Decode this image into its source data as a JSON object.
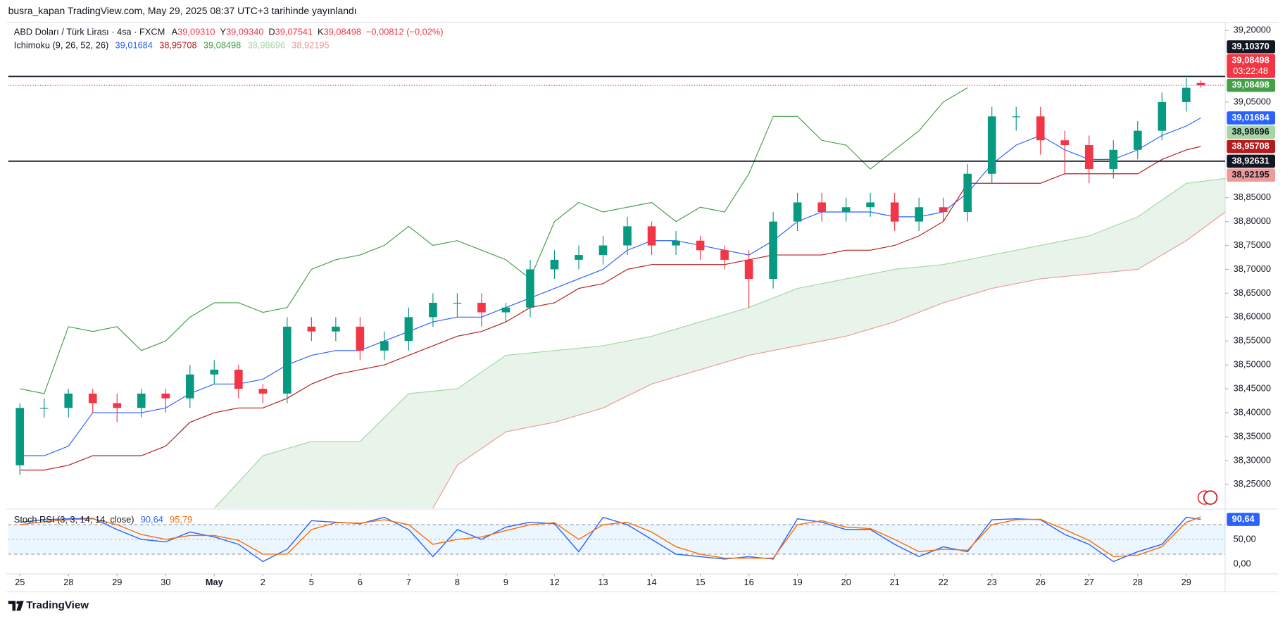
{
  "header": "busra_kapan TradingView.com, May 29, 2025 08:37 UTC+3 tarihinde yayınlandı",
  "footer": "TradingView",
  "chart_data": [
    {
      "type": "candlestick",
      "title": "ABD Doları / Türk Lirası · 4sa · FXCM",
      "ohlc_legend": [
        {
          "key": "A",
          "value": "39,09310"
        },
        {
          "key": "Y",
          "value": "39,09340"
        },
        {
          "key": "D",
          "value": "39,07541"
        },
        {
          "key": "K",
          "value": "39,08498"
        }
      ],
      "change": "−0,00812 (−0,02%)",
      "up_color": "#089981",
      "down_color": "#f23645",
      "x": [
        0,
        0.5,
        1,
        1.5,
        2,
        2.5,
        3,
        3.5,
        4,
        4.5,
        5,
        5.5,
        6,
        6.5,
        7,
        7.5,
        8,
        8.5,
        9,
        9.5,
        10,
        10.5,
        11,
        11.5,
        12,
        12.5,
        13,
        13.5,
        14,
        14.5,
        15,
        15.5,
        16,
        16.5,
        17,
        17.5,
        18,
        18.5,
        19,
        19.5,
        20,
        20.5,
        21,
        21.5,
        22,
        22.5,
        23,
        23.5,
        24,
        24.3
      ],
      "open": [
        38.29,
        38.41,
        38.41,
        38.44,
        38.42,
        38.41,
        38.44,
        38.43,
        38.48,
        38.49,
        38.45,
        38.44,
        38.58,
        38.57,
        38.58,
        38.53,
        38.55,
        38.6,
        38.63,
        38.63,
        38.61,
        38.62,
        38.7,
        38.72,
        38.73,
        38.75,
        38.79,
        38.75,
        38.76,
        38.74,
        38.72,
        38.68,
        38.8,
        38.84,
        38.82,
        38.83,
        38.84,
        38.8,
        38.83,
        38.82,
        38.9,
        39.02,
        39.02,
        38.97,
        38.96,
        38.91,
        38.95,
        38.99,
        39.05,
        39.09
      ],
      "high": [
        38.42,
        38.43,
        38.45,
        38.45,
        38.44,
        38.45,
        38.45,
        38.5,
        38.51,
        38.5,
        38.46,
        38.6,
        38.6,
        38.6,
        38.6,
        38.57,
        38.62,
        38.65,
        38.65,
        38.65,
        38.63,
        38.72,
        38.74,
        38.75,
        38.77,
        38.81,
        38.8,
        38.78,
        38.77,
        38.75,
        38.74,
        38.82,
        38.86,
        38.86,
        38.85,
        38.86,
        38.86,
        38.85,
        38.85,
        38.92,
        39.04,
        39.04,
        39.04,
        38.99,
        38.98,
        38.97,
        39.01,
        39.07,
        39.1,
        39.095
      ],
      "low": [
        38.27,
        38.39,
        38.39,
        38.4,
        38.38,
        38.39,
        38.4,
        38.41,
        38.46,
        38.43,
        38.42,
        38.42,
        38.55,
        38.55,
        38.51,
        38.51,
        38.53,
        38.58,
        38.6,
        38.58,
        38.59,
        38.6,
        38.68,
        38.7,
        38.71,
        38.73,
        38.73,
        38.73,
        38.72,
        38.7,
        38.62,
        38.66,
        38.78,
        38.8,
        38.8,
        38.81,
        38.78,
        38.78,
        38.8,
        38.8,
        38.88,
        38.99,
        38.94,
        38.9,
        38.88,
        38.89,
        38.93,
        38.97,
        39.03,
        39.08
      ],
      "close": [
        38.41,
        38.41,
        38.44,
        38.42,
        38.41,
        38.44,
        38.43,
        38.48,
        38.49,
        38.45,
        38.44,
        38.58,
        38.57,
        38.58,
        38.53,
        38.55,
        38.6,
        38.63,
        38.63,
        38.61,
        38.62,
        38.7,
        38.72,
        38.73,
        38.75,
        38.79,
        38.75,
        38.76,
        38.74,
        38.72,
        38.68,
        38.8,
        38.84,
        38.82,
        38.83,
        38.84,
        38.8,
        38.83,
        38.82,
        38.9,
        39.02,
        39.02,
        38.97,
        38.96,
        38.91,
        38.95,
        38.99,
        39.05,
        39.08,
        39.085
      ],
      "xlim": [
        -0.24,
        24.8
      ],
      "xticks": [
        {
          "value": 0,
          "label": "25"
        },
        {
          "value": 1,
          "label": "28"
        },
        {
          "value": 2,
          "label": "29"
        },
        {
          "value": 3,
          "label": "30"
        },
        {
          "value": 4,
          "label": "May"
        },
        {
          "value": 5,
          "label": "2"
        },
        {
          "value": 6,
          "label": "5"
        },
        {
          "value": 7,
          "label": "6"
        },
        {
          "value": 8,
          "label": "7"
        },
        {
          "value": 9,
          "label": "8"
        },
        {
          "value": 10,
          "label": "9"
        },
        {
          "value": 11,
          "label": "12"
        },
        {
          "value": 12,
          "label": "13"
        },
        {
          "value": 13,
          "label": "14"
        },
        {
          "value": 14,
          "label": "15"
        },
        {
          "value": 15,
          "label": "16"
        },
        {
          "value": 16,
          "label": "19"
        },
        {
          "value": 17,
          "label": "20"
        },
        {
          "value": 18,
          "label": "21"
        },
        {
          "value": 19,
          "label": "22"
        },
        {
          "value": 20,
          "label": "23"
        },
        {
          "value": 21,
          "label": "26"
        },
        {
          "value": 22,
          "label": "27"
        },
        {
          "value": 23,
          "label": "28"
        },
        {
          "value": 24,
          "label": "29"
        }
      ],
      "ylim": [
        38.2,
        39.2154
      ],
      "yticks": [
        {
          "value": 39.2,
          "label": "39,20000"
        },
        {
          "value": 39.05,
          "label": "39,05000"
        },
        {
          "value": 38.85,
          "label": "38,85000"
        },
        {
          "value": 38.8,
          "label": "38,80000"
        },
        {
          "value": 38.75,
          "label": "38,75000"
        },
        {
          "value": 38.7,
          "label": "38,70000"
        },
        {
          "value": 38.65,
          "label": "38,65000"
        },
        {
          "value": 38.6,
          "label": "38,60000"
        },
        {
          "value": 38.55,
          "label": "38,55000"
        },
        {
          "value": 38.5,
          "label": "38,50000"
        },
        {
          "value": 38.45,
          "label": "38,45000"
        },
        {
          "value": 38.4,
          "label": "38,40000"
        },
        {
          "value": 38.35,
          "label": "38,35000"
        },
        {
          "value": 38.3,
          "label": "38,30000"
        },
        {
          "value": 38.25,
          "label": "38,25000"
        }
      ],
      "grid": false,
      "levels": [
        {
          "value": 39.1037,
          "label": "39,10370",
          "color": "#131722",
          "line": "solid"
        },
        {
          "value": 39.08498,
          "label": "39,08498",
          "sub": "03:22:48",
          "color": "#f23645",
          "line": "dotted"
        },
        {
          "value": 39.08498,
          "label": "39,08498",
          "color": "#43a047"
        },
        {
          "value": 39.01684,
          "label": "39,01684",
          "color": "#2962ff"
        },
        {
          "value": 38.98696,
          "label": "38,98696",
          "color": "#a5d6a7",
          "text_color": "#131722"
        },
        {
          "value": 38.95708,
          "label": "38,95708",
          "color": "#b71c1c"
        },
        {
          "value": 38.92631,
          "label": "38,92631",
          "color": "#131722",
          "line": "solid"
        },
        {
          "value": 38.92195,
          "label": "38,92195",
          "color": "#ef9a9a",
          "text_color": "#131722"
        }
      ],
      "indicator": "Ichimoku (9, 26, 52, 26)",
      "legend": [
        {
          "label": "39,01684",
          "color": "#2962ff"
        },
        {
          "label": "38,95708",
          "color": "#b71c1c"
        },
        {
          "label": "39,08498",
          "color": "#43a047"
        },
        {
          "label": "38,98696",
          "color": "#a5d6a7"
        },
        {
          "label": "38,92195",
          "color": "#ef9a9a"
        }
      ],
      "series": [
        {
          "color": "#2962ff",
          "values": [
            38.31,
            38.31,
            38.33,
            38.4,
            38.4,
            38.4,
            38.41,
            38.44,
            38.46,
            38.46,
            38.47,
            38.5,
            38.52,
            38.53,
            38.53,
            38.55,
            38.57,
            38.59,
            38.6,
            38.6,
            38.62,
            38.64,
            38.66,
            38.68,
            38.7,
            38.74,
            38.76,
            38.76,
            38.75,
            38.74,
            38.73,
            38.76,
            38.8,
            38.82,
            38.82,
            38.82,
            38.81,
            38.81,
            38.82,
            38.86,
            38.92,
            38.96,
            38.98,
            38.95,
            38.93,
            38.93,
            38.95,
            38.98,
            39.0,
            39.01684
          ]
        },
        {
          "color": "#b71c1c",
          "values": [
            38.28,
            38.28,
            38.29,
            38.31,
            38.31,
            38.31,
            38.33,
            38.38,
            38.4,
            38.41,
            38.41,
            38.43,
            38.46,
            38.48,
            38.49,
            38.5,
            38.52,
            38.54,
            38.56,
            38.57,
            38.59,
            38.62,
            38.63,
            38.66,
            38.67,
            38.7,
            38.71,
            38.71,
            38.71,
            38.71,
            38.72,
            38.73,
            38.73,
            38.73,
            38.74,
            38.74,
            38.75,
            38.77,
            38.8,
            38.88,
            38.88,
            38.88,
            38.88,
            38.9,
            38.9,
            38.9,
            38.9,
            38.93,
            38.95,
            38.95708
          ]
        },
        {
          "color": "#43a047",
          "x": [
            0,
            0.5,
            1,
            1.5,
            2,
            2.5,
            3,
            3.5,
            4,
            4.5,
            5,
            5.5,
            6,
            6.5,
            7,
            7.5,
            8,
            8.5,
            9,
            9.5,
            10,
            10.5,
            11,
            11.5,
            12,
            12.5,
            13,
            13.5,
            14,
            14.5,
            15,
            15.5,
            16,
            16.5,
            17,
            17.5,
            18,
            18.5,
            19,
            19.5
          ],
          "values": [
            38.45,
            38.44,
            38.58,
            38.57,
            38.58,
            38.53,
            38.55,
            38.6,
            38.63,
            38.63,
            38.61,
            38.62,
            38.7,
            38.72,
            38.73,
            38.75,
            38.79,
            38.75,
            38.76,
            38.74,
            38.72,
            38.68,
            38.8,
            38.84,
            38.82,
            38.83,
            38.84,
            38.8,
            38.83,
            38.82,
            38.9,
            39.02,
            39.02,
            38.97,
            38.96,
            38.91,
            38.95,
            38.99,
            39.05,
            39.08
          ]
        },
        {
          "color": "#a5d6a7",
          "x": [
            4,
            5,
            6,
            7,
            8,
            9,
            10,
            11,
            12,
            13,
            14,
            15,
            16,
            17,
            18,
            19,
            20,
            21,
            22,
            23,
            24,
            24.8
          ],
          "values": [
            38.2,
            38.31,
            38.34,
            38.34,
            38.44,
            38.45,
            38.52,
            38.53,
            38.54,
            38.56,
            38.59,
            38.62,
            38.66,
            38.68,
            38.7,
            38.71,
            38.73,
            38.75,
            38.77,
            38.81,
            38.88,
            38.89
          ]
        },
        {
          "color": "#ef9a9a",
          "x": [
            8.5,
            9,
            10,
            11,
            12,
            13,
            14,
            15,
            16,
            17,
            18,
            19,
            20,
            21,
            22,
            23,
            24,
            24.8
          ],
          "values": [
            38.2,
            38.29,
            38.36,
            38.38,
            38.41,
            38.46,
            38.49,
            38.52,
            38.54,
            38.56,
            38.59,
            38.63,
            38.66,
            38.68,
            38.69,
            38.7,
            38.76,
            38.82
          ]
        }
      ],
      "cloud_color": "rgba(67,160,71,0.12)"
    },
    {
      "type": "line",
      "title": "Stoch RSI (3, 3, 14, 14, close)",
      "legend": [
        {
          "label": "90,64",
          "color": "#2962ff"
        },
        {
          "label": "95,79",
          "color": "#ff6d00"
        }
      ],
      "x": [
        0,
        0.5,
        1,
        1.5,
        2,
        2.5,
        3,
        3.5,
        4,
        4.5,
        5,
        5.5,
        6,
        6.5,
        7,
        7.5,
        8,
        8.5,
        9,
        9.5,
        10,
        10.5,
        11,
        11.5,
        12,
        12.5,
        13,
        13.5,
        14,
        14.5,
        15,
        15.5,
        16,
        16.5,
        17,
        17.5,
        18,
        18.5,
        19,
        19.5,
        20,
        20.5,
        21,
        21.5,
        22,
        22.5,
        23,
        23.5,
        24,
        24.3
      ],
      "series": [
        {
          "color": "#2962ff",
          "values": [
            85,
            90,
            92,
            93,
            70,
            50,
            45,
            65,
            55,
            40,
            5,
            30,
            88,
            85,
            82,
            95,
            70,
            15,
            70,
            50,
            75,
            85,
            82,
            25,
            95,
            80,
            50,
            20,
            15,
            10,
            15,
            10,
            92,
            85,
            70,
            70,
            40,
            15,
            35,
            25,
            90,
            92,
            90,
            60,
            40,
            5,
            25,
            40,
            95,
            90.64
          ]
        },
        {
          "color": "#ff6d00",
          "values": [
            80,
            86,
            90,
            92,
            80,
            60,
            50,
            58,
            58,
            48,
            20,
            20,
            70,
            84,
            83,
            90,
            80,
            40,
            50,
            55,
            68,
            80,
            84,
            50,
            80,
            85,
            65,
            35,
            20,
            12,
            12,
            12,
            80,
            88,
            75,
            72,
            50,
            25,
            30,
            28,
            80,
            90,
            91,
            70,
            48,
            15,
            18,
            35,
            85,
            95.79
          ]
        }
      ],
      "ylim": [
        -20,
        110
      ],
      "yticks": [
        {
          "value": 50,
          "label": "50,00"
        },
        {
          "value": 0,
          "label": "0,00"
        }
      ],
      "bands": [
        20,
        80
      ],
      "band_color": "rgba(33,150,243,0.09)",
      "badge": {
        "value": 90.64,
        "label": "90,64",
        "color": "#2962ff"
      }
    }
  ]
}
